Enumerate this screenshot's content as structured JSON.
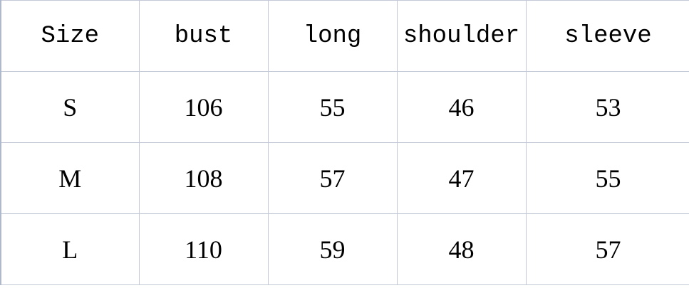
{
  "headers": [
    "Size",
    "bust",
    "long",
    "shoulder",
    "sleeve"
  ],
  "rows": [
    [
      "S",
      "106",
      "55",
      "46",
      "53"
    ],
    [
      "M",
      "108",
      "57",
      "47",
      "55"
    ],
    [
      "L",
      "110",
      "59",
      "48",
      "57"
    ]
  ],
  "colors": {
    "grid": "#c3c9d6"
  }
}
